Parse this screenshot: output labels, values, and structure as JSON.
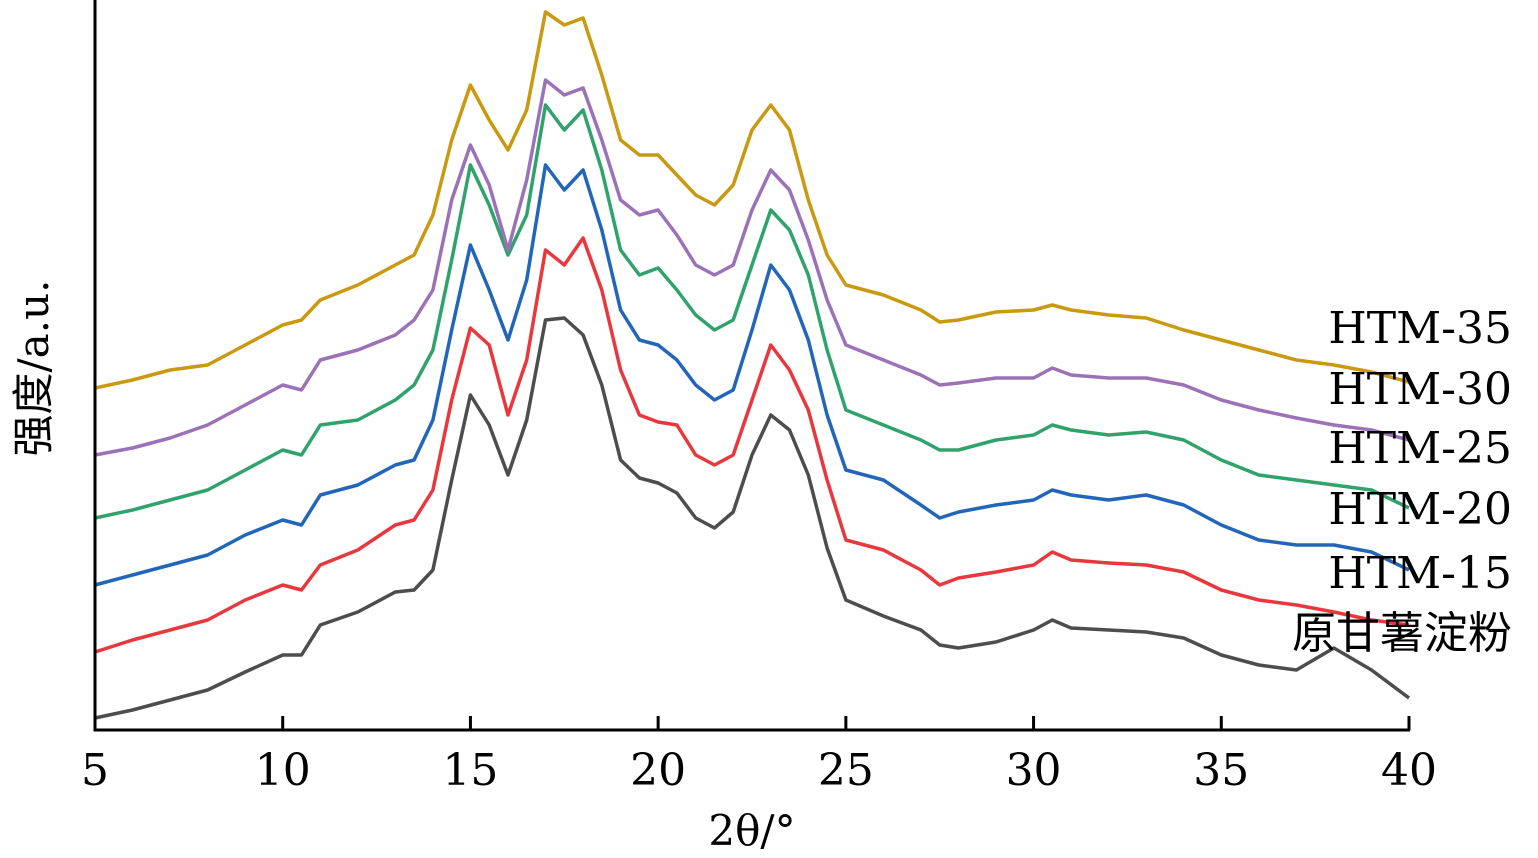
{
  "chart_data": {
    "type": "line",
    "xlabel": "2θ/°",
    "ylabel": "强度/a.u.",
    "xlim": [
      5,
      40
    ],
    "ylim": [
      0,
      730
    ],
    "xticks": [
      "5",
      "10",
      "15",
      "20",
      "25",
      "30",
      "35",
      "40"
    ],
    "grid": false,
    "legend": "series labels printed at right end of each curve",
    "x": [
      5,
      6,
      7,
      8,
      9,
      10,
      10.5,
      11,
      12,
      13,
      13.5,
      14,
      14.5,
      15,
      15.5,
      16,
      16.5,
      17,
      17.5,
      18,
      18.5,
      19,
      19.5,
      20,
      20.5,
      21,
      21.5,
      22,
      22.5,
      23,
      23.5,
      24,
      24.5,
      25,
      26,
      27,
      27.5,
      28,
      29,
      30,
      30.5,
      31,
      32,
      33,
      34,
      35,
      36,
      37,
      38,
      39,
      40
    ],
    "series": [
      {
        "name": "原甘薯淀粉",
        "color": "#4d4d4d",
        "values": [
          12,
          20,
          30,
          40,
          58,
          75,
          75,
          105,
          118,
          138,
          140,
          160,
          250,
          335,
          305,
          255,
          310,
          410,
          412,
          395,
          345,
          270,
          252,
          247,
          237,
          212,
          202,
          218,
          275,
          315,
          300,
          255,
          182,
          130,
          114,
          100,
          85,
          82,
          88,
          100,
          110,
          102,
          100,
          98,
          92,
          75,
          65,
          60,
          82,
          60,
          32
        ]
      },
      {
        "name": "HTM-15",
        "color": "#e8383d",
        "values": [
          78,
          90,
          100,
          110,
          130,
          145,
          140,
          165,
          180,
          205,
          210,
          240,
          330,
          402,
          385,
          315,
          370,
          480,
          465,
          492,
          440,
          360,
          315,
          308,
          305,
          275,
          265,
          275,
          330,
          385,
          360,
          320,
          250,
          190,
          180,
          160,
          145,
          152,
          158,
          165,
          178,
          170,
          167,
          165,
          158,
          140,
          130,
          125,
          118,
          110,
          105
        ]
      },
      {
        "name": "HTM-20",
        "color": "#2166b8",
        "values": [
          145,
          155,
          165,
          175,
          195,
          210,
          205,
          235,
          245,
          265,
          270,
          310,
          400,
          485,
          440,
          390,
          450,
          565,
          540,
          560,
          500,
          420,
          390,
          385,
          370,
          345,
          330,
          340,
          400,
          465,
          440,
          390,
          315,
          260,
          250,
          225,
          212,
          218,
          225,
          230,
          240,
          235,
          230,
          235,
          225,
          205,
          190,
          185,
          185,
          178,
          160
        ]
      },
      {
        "name": "HTM-25",
        "color": "#2fa36b",
        "values": [
          212,
          220,
          230,
          240,
          260,
          280,
          275,
          305,
          310,
          330,
          345,
          380,
          470,
          565,
          525,
          475,
          515,
          625,
          600,
          620,
          560,
          480,
          455,
          462,
          440,
          415,
          400,
          410,
          465,
          520,
          500,
          455,
          380,
          320,
          305,
          290,
          280,
          280,
          290,
          295,
          305,
          300,
          295,
          298,
          290,
          270,
          255,
          250,
          245,
          240,
          222
        ]
      },
      {
        "name": "HTM-30",
        "color": "#9b72b8",
        "values": [
          275,
          282,
          292,
          305,
          325,
          345,
          340,
          370,
          380,
          395,
          410,
          440,
          530,
          585,
          545,
          480,
          550,
          650,
          635,
          642,
          590,
          530,
          515,
          520,
          495,
          465,
          455,
          465,
          520,
          560,
          540,
          490,
          430,
          385,
          370,
          355,
          345,
          347,
          352,
          352,
          362,
          355,
          352,
          352,
          345,
          330,
          320,
          312,
          305,
          300,
          290
        ]
      },
      {
        "name": "HTM-35",
        "color": "#c9990f",
        "values": [
          342,
          350,
          360,
          365,
          385,
          405,
          410,
          430,
          445,
          465,
          475,
          515,
          590,
          645,
          610,
          580,
          620,
          718,
          705,
          712,
          655,
          590,
          575,
          575,
          555,
          535,
          525,
          545,
          600,
          625,
          600,
          530,
          475,
          445,
          435,
          420,
          408,
          410,
          418,
          420,
          425,
          420,
          415,
          412,
          400,
          390,
          380,
          370,
          365,
          358,
          348
        ]
      }
    ]
  }
}
